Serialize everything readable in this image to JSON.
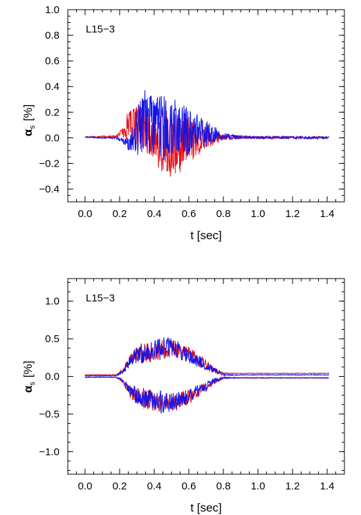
{
  "chart_data": [
    {
      "type": "line",
      "annotation": "L15−3",
      "xlabel": "t [sec]",
      "ylabel_symbol": "α",
      "ylabel_subscript": "s",
      "ylabel_unit": "[%]",
      "xlim": [
        -0.1,
        1.5
      ],
      "ylim": [
        -0.5,
        1.0
      ],
      "x_ticks": [
        0.0,
        0.2,
        0.4,
        0.6,
        0.8,
        1.0,
        1.2,
        1.4
      ],
      "x_tick_labels": [
        "0.0",
        "0.2",
        "0.4",
        "0.6",
        "0.8",
        "1.0",
        "1.2",
        "1.4"
      ],
      "y_ticks": [
        -0.4,
        -0.2,
        0.0,
        0.2,
        0.4,
        0.6,
        0.8,
        1.0
      ],
      "y_tick_labels": [
        "−0.4",
        "−0.2",
        "0.0",
        "0.2",
        "0.4",
        "0.6",
        "0.8",
        "1.0"
      ],
      "grid": false,
      "series": [
        {
          "color": "#e8121b",
          "style": "oscillating",
          "envelope": {
            "t": [
              0.0,
              0.18,
              0.22,
              0.26,
              0.3,
              0.4,
              0.5,
              0.6,
              0.7,
              0.8,
              0.9,
              1.0,
              1.41
            ],
            "upper": [
              0.01,
              0.02,
              0.1,
              0.27,
              0.28,
              0.25,
              0.22,
              0.18,
              0.1,
              0.03,
              0.02,
              0.015,
              0.01
            ],
            "lower": [
              0.0,
              0.0,
              0.0,
              -0.03,
              -0.1,
              -0.22,
              -0.34,
              -0.2,
              -0.1,
              -0.02,
              -0.01,
              -0.01,
              -0.005
            ]
          }
        },
        {
          "color": "#1414e6",
          "style": "oscillating",
          "envelope": {
            "t": [
              0.0,
              0.18,
              0.22,
              0.26,
              0.3,
              0.36,
              0.4,
              0.5,
              0.6,
              0.7,
              0.8,
              0.9,
              1.0,
              1.41
            ],
            "upper": [
              0.01,
              0.005,
              0.0,
              0.0,
              0.3,
              0.41,
              0.37,
              0.33,
              0.25,
              0.15,
              0.04,
              0.02,
              0.015,
              0.01
            ],
            "lower": [
              0.0,
              -0.01,
              -0.05,
              -0.12,
              -0.15,
              -0.16,
              -0.18,
              -0.2,
              -0.15,
              -0.07,
              -0.02,
              -0.01,
              -0.01,
              -0.01
            ]
          }
        }
      ]
    },
    {
      "type": "line",
      "annotation": "L15−3",
      "xlabel": "t [sec]",
      "ylabel_symbol": "α",
      "ylabel_subscript": "s",
      "ylabel_unit": "[%]",
      "xlim": [
        -0.1,
        1.5
      ],
      "ylim": [
        -1.3,
        1.3
      ],
      "x_ticks": [
        0.0,
        0.2,
        0.4,
        0.6,
        0.8,
        1.0,
        1.2,
        1.4
      ],
      "x_tick_labels": [
        "0.0",
        "0.2",
        "0.4",
        "0.6",
        "0.8",
        "1.0",
        "1.2",
        "1.4"
      ],
      "y_ticks": [
        -1.0,
        -0.5,
        0.0,
        0.5,
        1.0
      ],
      "y_tick_labels": [
        "−1.0",
        "−0.5",
        "0.0",
        "0.5",
        "1.0"
      ],
      "grid": false,
      "series": [
        {
          "color": "#e8121b",
          "style": "band-upper",
          "envelope": {
            "t": [
              0.0,
              0.18,
              0.22,
              0.26,
              0.3,
              0.4,
              0.45,
              0.5,
              0.6,
              0.7,
              0.75,
              0.8,
              0.9,
              1.0,
              1.41
            ],
            "center": [
              0.02,
              0.02,
              0.08,
              0.22,
              0.3,
              0.33,
              0.36,
              0.38,
              0.3,
              0.15,
              0.08,
              0.04,
              0.04,
              0.04,
              0.04
            ],
            "spread": [
              0.005,
              0.005,
              0.03,
              0.08,
              0.12,
              0.14,
              0.14,
              0.12,
              0.1,
              0.07,
              0.04,
              0.01,
              0.005,
              0.005,
              0.005
            ]
          }
        },
        {
          "color": "#1414e6",
          "style": "band-upper",
          "envelope": {
            "t": [
              0.0,
              0.18,
              0.22,
              0.26,
              0.3,
              0.4,
              0.45,
              0.5,
              0.6,
              0.7,
              0.75,
              0.8,
              0.9,
              1.0,
              1.41
            ],
            "center": [
              0.01,
              0.01,
              0.07,
              0.2,
              0.28,
              0.33,
              0.38,
              0.4,
              0.28,
              0.14,
              0.07,
              0.02,
              0.02,
              0.02,
              0.02
            ],
            "spread": [
              0.005,
              0.005,
              0.03,
              0.08,
              0.12,
              0.15,
              0.16,
              0.13,
              0.1,
              0.07,
              0.04,
              0.01,
              0.005,
              0.005,
              0.005
            ]
          }
        },
        {
          "color": "#e8121b",
          "style": "band-lower",
          "envelope": {
            "t": [
              0.0,
              0.18,
              0.22,
              0.26,
              0.3,
              0.4,
              0.45,
              0.5,
              0.6,
              0.7,
              0.75,
              0.8,
              0.9,
              1.0,
              1.41
            ],
            "center": [
              -0.01,
              -0.01,
              -0.07,
              -0.2,
              -0.27,
              -0.33,
              -0.36,
              -0.35,
              -0.28,
              -0.14,
              -0.07,
              -0.02,
              -0.02,
              -0.02,
              -0.02
            ],
            "spread": [
              0.005,
              0.005,
              0.03,
              0.08,
              0.12,
              0.14,
              0.14,
              0.12,
              0.1,
              0.07,
              0.04,
              0.01,
              0.005,
              0.005,
              0.005
            ]
          }
        },
        {
          "color": "#1414e6",
          "style": "band-lower",
          "envelope": {
            "t": [
              0.0,
              0.18,
              0.22,
              0.26,
              0.3,
              0.4,
              0.45,
              0.5,
              0.6,
              0.7,
              0.75,
              0.8,
              0.9,
              1.0,
              1.41
            ],
            "center": [
              -0.01,
              -0.01,
              -0.06,
              -0.19,
              -0.26,
              -0.32,
              -0.35,
              -0.34,
              -0.27,
              -0.13,
              -0.06,
              -0.02,
              -0.02,
              -0.02,
              -0.02
            ],
            "spread": [
              0.005,
              0.005,
              0.03,
              0.08,
              0.12,
              0.15,
              0.15,
              0.12,
              0.1,
              0.07,
              0.04,
              0.01,
              0.005,
              0.005,
              0.005
            ]
          }
        }
      ]
    }
  ]
}
